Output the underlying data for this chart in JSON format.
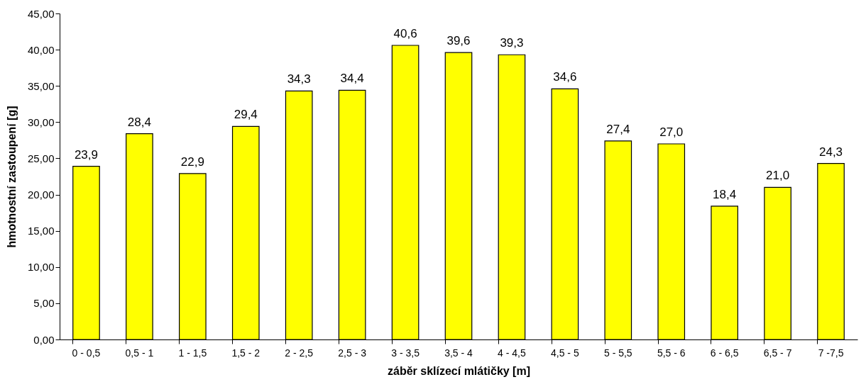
{
  "chart_data": {
    "type": "bar",
    "xlabel": "záběr sklízecí mlátičky [m]",
    "ylabel": "hmotnostní zastoupení [g]",
    "categories": [
      "0 - 0,5",
      "0,5 - 1",
      "1 - 1,5",
      "1,5 - 2",
      "2 - 2,5",
      "2,5 - 3",
      "3 - 3,5",
      "3,5 - 4",
      "4 - 4,5",
      "4,5 - 5",
      "5 - 5,5",
      "5,5 - 6",
      "6 - 6,5",
      "6,5 - 7",
      "7 -7,5"
    ],
    "values": [
      23.9,
      28.4,
      22.9,
      29.4,
      34.3,
      34.4,
      40.6,
      39.6,
      39.3,
      34.6,
      27.4,
      27.0,
      18.4,
      21.0,
      24.3
    ],
    "value_labels": [
      "23,9",
      "28,4",
      "22,9",
      "29,4",
      "34,3",
      "34,4",
      "40,6",
      "39,6",
      "39,3",
      "34,6",
      "27,4",
      "27,0",
      "18,4",
      "21,0",
      "24,3"
    ],
    "color": "#ffff00",
    "ylim": [
      0,
      45
    ],
    "yticks": [
      {
        "value": 0,
        "label": "0,00"
      },
      {
        "value": 5,
        "label": "5,00"
      },
      {
        "value": 10,
        "label": "10,00"
      },
      {
        "value": 15,
        "label": "15,00"
      },
      {
        "value": 20,
        "label": "20,00"
      },
      {
        "value": 25,
        "label": "25,00"
      },
      {
        "value": 30,
        "label": "30,00"
      },
      {
        "value": 35,
        "label": "35,00"
      },
      {
        "value": 40,
        "label": "40,00"
      },
      {
        "value": 45,
        "label": "45,00"
      }
    ],
    "grid": false
  }
}
